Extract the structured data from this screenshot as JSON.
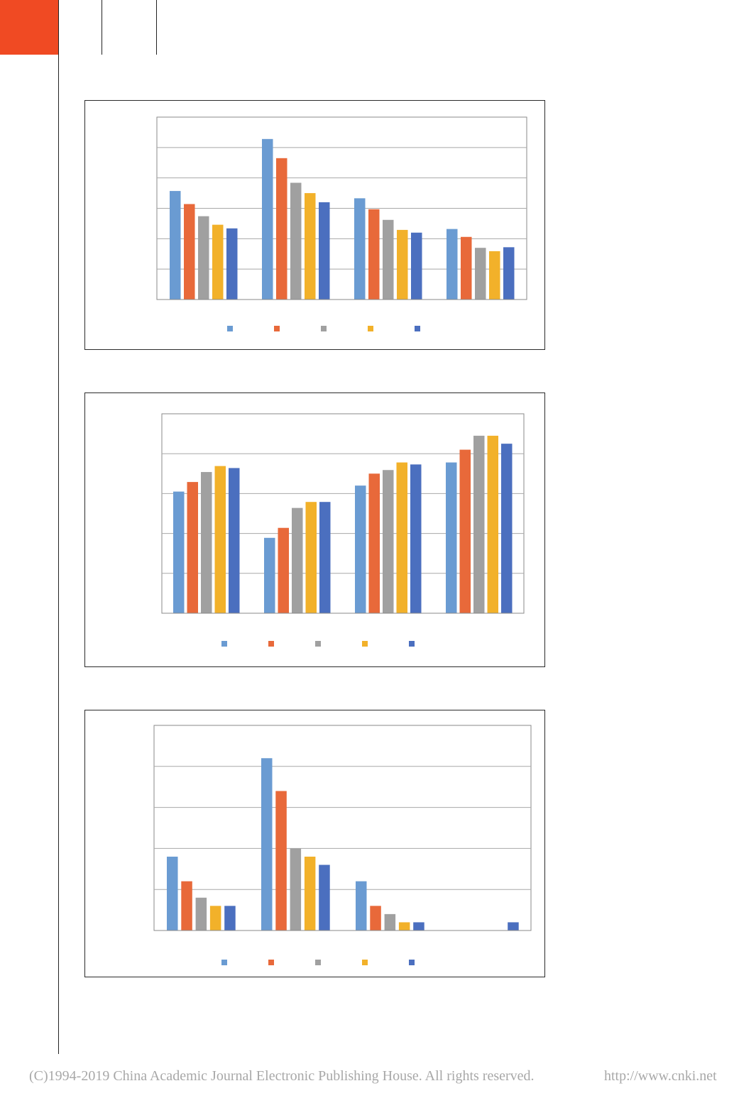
{
  "page": {
    "accent_color": "#f04a23",
    "footer": {
      "copyright": "(C)1994-2019 China Academic Journal Electronic Publishing House. All rights reserved.",
      "url": "http://www.cnki.net"
    }
  },
  "chart_data": [
    {
      "type": "bar",
      "title": "",
      "categories": [
        "",
        "",
        "",
        ""
      ],
      "ylim": [
        0,
        6
      ],
      "grid": true,
      "legend_position": "bottom",
      "series": [
        {
          "color": "#6a9bd2",
          "values": [
            3.57,
            5.28,
            3.33,
            2.32
          ]
        },
        {
          "color": "#e8693a",
          "values": [
            3.14,
            4.65,
            2.97,
            2.06
          ]
        },
        {
          "color": "#a0a0a0",
          "values": [
            2.74,
            3.84,
            2.62,
            1.7
          ]
        },
        {
          "color": "#f2b12a",
          "values": [
            2.46,
            3.5,
            2.29,
            1.59
          ]
        },
        {
          "color": "#4b6fbf",
          "values": [
            2.34,
            3.2,
            2.2,
            1.72
          ]
        }
      ]
    },
    {
      "type": "bar",
      "title": "",
      "categories": [
        "",
        "",
        "",
        ""
      ],
      "ylim": [
        0,
        5
      ],
      "grid": true,
      "legend_position": "bottom",
      "series": [
        {
          "color": "#6a9bd2",
          "values": [
            3.05,
            1.89,
            3.2,
            3.78
          ]
        },
        {
          "color": "#e8693a",
          "values": [
            3.29,
            2.14,
            3.5,
            4.1
          ]
        },
        {
          "color": "#a0a0a0",
          "values": [
            3.54,
            2.64,
            3.59,
            4.45
          ]
        },
        {
          "color": "#f2b12a",
          "values": [
            3.69,
            2.79,
            3.78,
            4.45
          ]
        },
        {
          "color": "#4b6fbf",
          "values": [
            3.64,
            2.79,
            3.73,
            4.25
          ]
        }
      ]
    },
    {
      "type": "bar",
      "title": "",
      "categories": [
        "",
        "",
        "",
        ""
      ],
      "ylim": [
        0,
        5
      ],
      "grid": true,
      "legend_position": "bottom",
      "series": [
        {
          "color": "#6a9bd2",
          "values": [
            1.8,
            4.2,
            1.2,
            0
          ]
        },
        {
          "color": "#e8693a",
          "values": [
            1.2,
            3.4,
            0.6,
            0
          ]
        },
        {
          "color": "#a0a0a0",
          "values": [
            0.8,
            2.0,
            0.4,
            0
          ]
        },
        {
          "color": "#f2b12a",
          "values": [
            0.6,
            1.8,
            0.2,
            0
          ]
        },
        {
          "color": "#4b6fbf",
          "values": [
            0.6,
            1.6,
            0.2,
            0.2
          ]
        }
      ]
    }
  ]
}
